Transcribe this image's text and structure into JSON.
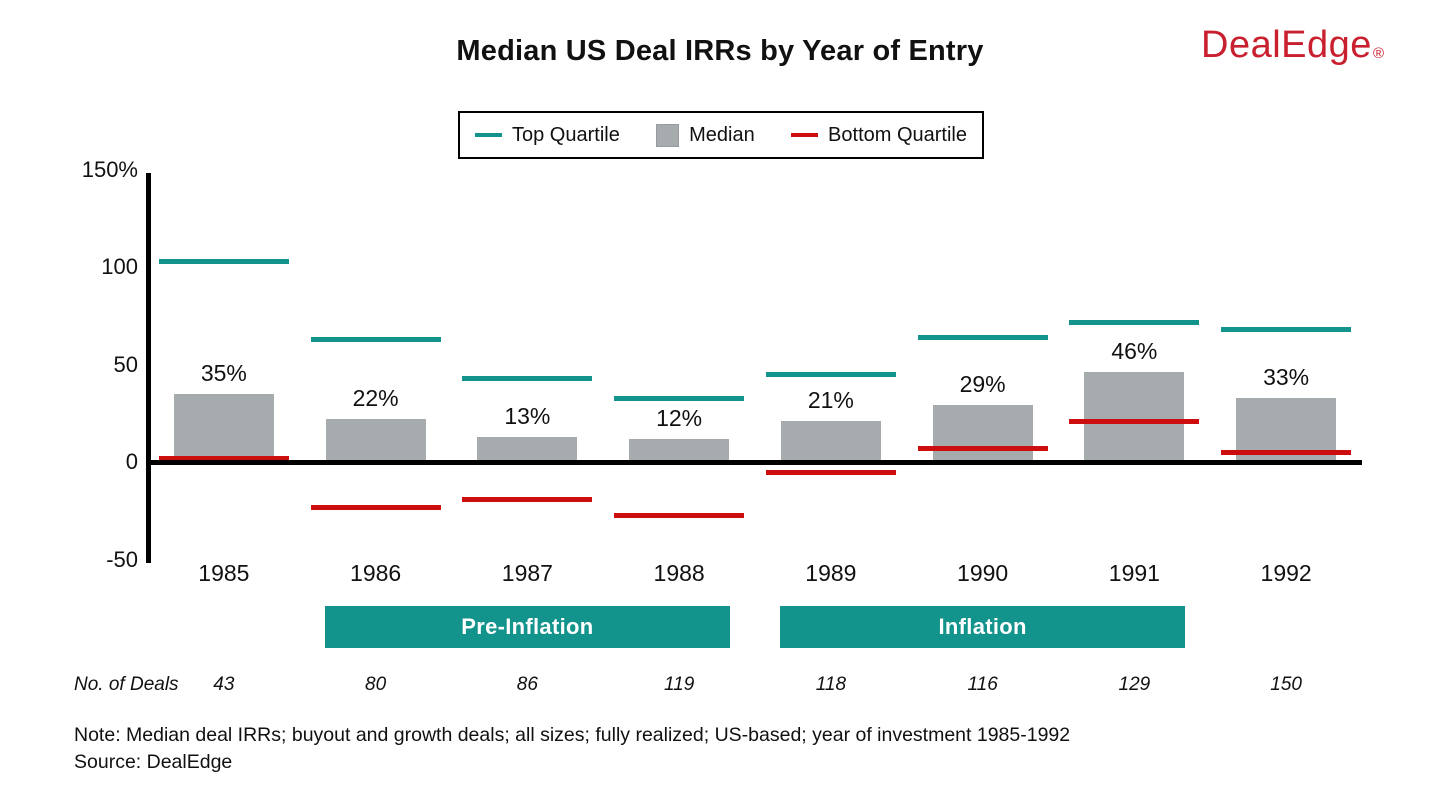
{
  "header": {
    "title": "Median US Deal IRRs by Year of Entry",
    "logo_text": "DealEdge",
    "logo_reg": "®"
  },
  "legend": {
    "items": [
      {
        "label": "Top Quartile",
        "swatch": "teal-line"
      },
      {
        "label": "Median",
        "swatch": "gray-square"
      },
      {
        "label": "Bottom Quartile",
        "swatch": "red-line"
      }
    ]
  },
  "chart_data": {
    "type": "bar",
    "title": "Median US Deal IRRs by Year of Entry",
    "categories": [
      "1985",
      "1986",
      "1987",
      "1988",
      "1989",
      "1990",
      "1991",
      "1992"
    ],
    "series": [
      {
        "name": "Top Quartile",
        "render": "dash",
        "color_key": "teal",
        "values": [
          103,
          63,
          43,
          33,
          45,
          64,
          72,
          68
        ]
      },
      {
        "name": "Median",
        "render": "bar",
        "color_key": "bar_gray",
        "values": [
          35,
          22,
          13,
          12,
          21,
          29,
          46,
          33
        ],
        "labels": [
          "35%",
          "22%",
          "13%",
          "12%",
          "21%",
          "29%",
          "46%",
          "33%"
        ]
      },
      {
        "name": "Bottom Quartile",
        "render": "dash",
        "color_key": "quartile_red",
        "values": [
          2,
          -23,
          -19,
          -27,
          -5,
          7,
          21,
          5
        ]
      }
    ],
    "xlabel": "",
    "ylabel": "",
    "ylim": [
      -50,
      150
    ],
    "yticks": [
      {
        "value": 150,
        "label": "150%"
      },
      {
        "value": 100,
        "label": "100"
      },
      {
        "value": 50,
        "label": "50"
      },
      {
        "value": 0,
        "label": "0"
      },
      {
        "value": -50,
        "label": "-50"
      }
    ],
    "grid": false,
    "legend_position": "top-center",
    "era_bands": [
      {
        "label": "Pre-Inflation",
        "from_index": 1,
        "to_index": 3
      },
      {
        "label": "Inflation",
        "from_index": 4,
        "to_index": 6
      }
    ],
    "deals_row": {
      "label": "No. of Deals",
      "values": [
        "43",
        "80",
        "86",
        "119",
        "118",
        "116",
        "129",
        "150"
      ]
    }
  },
  "footer": {
    "note": "Note: Median deal IRRs; buyout and growth deals; all sizes; fully realized; US-based; year of investment 1985-1992",
    "source": "Source: DealEdge"
  },
  "colors": {
    "teal": "#12938B",
    "quartile_red": "#CC0E0E",
    "bar_gray": "#A6ABAE",
    "logo_red": "#C8202E",
    "axis_black": "#000000"
  }
}
